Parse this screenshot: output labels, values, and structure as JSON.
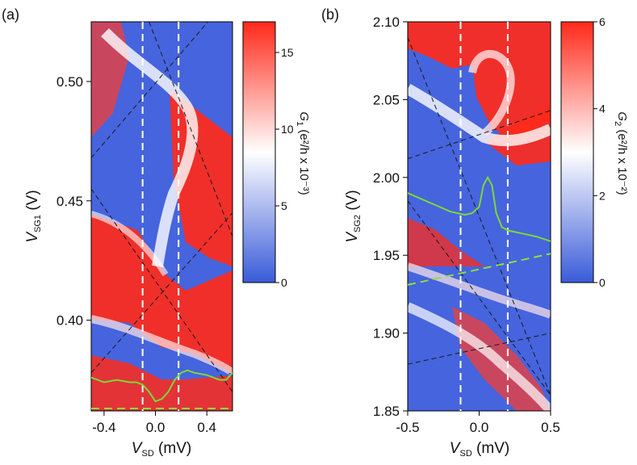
{
  "chart_data": [
    {
      "type": "heatmap",
      "panel_label": "(a)",
      "xlabel_main": "V",
      "xlabel_sub": "SD",
      "xlabel_unit": " (mV)",
      "ylabel_main": "V",
      "ylabel_sub": "SG1",
      "ylabel_unit": " (V)",
      "xlim": [
        -0.5,
        0.6
      ],
      "ylim": [
        0.362,
        0.525
      ],
      "x_ticks": [
        {
          "value": -0.4,
          "label": "-0.4"
        },
        {
          "value": 0.0,
          "label": "0.0"
        },
        {
          "value": 0.4,
          "label": "0.4"
        }
      ],
      "y_ticks": [
        {
          "value": 0.4,
          "label": "0.40"
        },
        {
          "value": 0.45,
          "label": "0.45"
        },
        {
          "value": 0.5,
          "label": "0.50"
        }
      ],
      "colorbar": {
        "label_main": "G",
        "label_sub": "1",
        "label_rest": " (e²/h x 10⁻³)",
        "range": [
          0,
          17
        ],
        "ticks": [
          {
            "value": 0,
            "label": "0"
          },
          {
            "value": 5,
            "label": "5"
          },
          {
            "value": 10,
            "label": "10"
          },
          {
            "value": 15,
            "label": "15"
          }
        ],
        "colors": [
          "#3a5bd9",
          "#ffffff",
          "#ff2a1a"
        ]
      },
      "white_dashed_x": [
        -0.1,
        0.18
      ],
      "black_dashed_lines": [
        [
          [
            -0.5,
            0.468
          ],
          [
            0.6,
            0.537
          ]
        ],
        [
          [
            -0.5,
            0.378
          ],
          [
            0.6,
            0.445
          ]
        ],
        [
          [
            -0.5,
            0.455
          ],
          [
            0.6,
            0.37
          ]
        ],
        [
          [
            -0.05,
            0.525
          ],
          [
            0.6,
            0.435
          ]
        ]
      ],
      "green_dashed_line": [
        [
          -0.5,
          0.363
        ],
        [
          0.6,
          0.363
        ]
      ],
      "green_trace": [
        [
          -0.5,
          0.376
        ],
        [
          -0.4,
          0.374
        ],
        [
          -0.3,
          0.375
        ],
        [
          -0.2,
          0.374
        ],
        [
          -0.15,
          0.374
        ],
        [
          -0.1,
          0.373
        ],
        [
          -0.05,
          0.37
        ],
        [
          0.0,
          0.366
        ],
        [
          0.05,
          0.367
        ],
        [
          0.1,
          0.37
        ],
        [
          0.15,
          0.375
        ],
        [
          0.2,
          0.378
        ],
        [
          0.25,
          0.379
        ],
        [
          0.3,
          0.378
        ],
        [
          0.4,
          0.377
        ],
        [
          0.5,
          0.375
        ],
        [
          0.55,
          0.375
        ],
        [
          0.6,
          0.378
        ]
      ]
    },
    {
      "type": "heatmap",
      "panel_label": "(b)",
      "xlabel_main": "V",
      "xlabel_sub": "SD",
      "xlabel_unit": " (mV)",
      "ylabel_main": "V",
      "ylabel_sub": "SG2",
      "ylabel_unit": " (V)",
      "xlim": [
        -0.5,
        0.5
      ],
      "ylim": [
        1.85,
        2.1
      ],
      "x_ticks": [
        {
          "value": -0.5,
          "label": "-0.5"
        },
        {
          "value": 0.0,
          "label": "0.0"
        },
        {
          "value": 0.5,
          "label": "0.5"
        }
      ],
      "y_ticks": [
        {
          "value": 1.85,
          "label": "1.85"
        },
        {
          "value": 1.9,
          "label": "1.90"
        },
        {
          "value": 1.95,
          "label": "1.95"
        },
        {
          "value": 2.0,
          "label": "2.00"
        },
        {
          "value": 2.05,
          "label": "2.05"
        },
        {
          "value": 2.1,
          "label": "2.10"
        }
      ],
      "colorbar": {
        "label_main": "G",
        "label_sub": "2",
        "label_rest": " (e²/h x 10⁻²)",
        "range": [
          0,
          6
        ],
        "ticks": [
          {
            "value": 0,
            "label": "0"
          },
          {
            "value": 2,
            "label": "2"
          },
          {
            "value": 4,
            "label": "4"
          },
          {
            "value": 6,
            "label": "6"
          }
        ],
        "colors": [
          "#3a5bd9",
          "#ffffff",
          "#ff2a1a"
        ]
      },
      "white_dashed_x": [
        -0.13,
        0.2
      ],
      "black_dashed_lines": [
        [
          [
            -0.5,
            2.012
          ],
          [
            0.5,
            2.043
          ]
        ],
        [
          [
            -0.5,
            1.88
          ],
          [
            0.5,
            1.9
          ]
        ],
        [
          [
            -0.5,
            2.09
          ],
          [
            0.5,
            1.86
          ]
        ],
        [
          [
            -0.5,
            1.985
          ],
          [
            0.5,
            1.86
          ]
        ]
      ],
      "green_dashed_line": [
        [
          -0.5,
          1.931
        ],
        [
          0.5,
          1.951
        ]
      ],
      "green_trace": [
        [
          -0.5,
          1.99
        ],
        [
          -0.4,
          1.986
        ],
        [
          -0.3,
          1.982
        ],
        [
          -0.2,
          1.978
        ],
        [
          -0.1,
          1.976
        ],
        [
          -0.05,
          1.977
        ],
        [
          0.0,
          1.981
        ],
        [
          0.03,
          1.995
        ],
        [
          0.06,
          2.0
        ],
        [
          0.09,
          1.995
        ],
        [
          0.12,
          1.977
        ],
        [
          0.16,
          1.968
        ],
        [
          0.2,
          1.966
        ],
        [
          0.3,
          1.964
        ],
        [
          0.4,
          1.962
        ],
        [
          0.5,
          1.959
        ]
      ]
    }
  ]
}
